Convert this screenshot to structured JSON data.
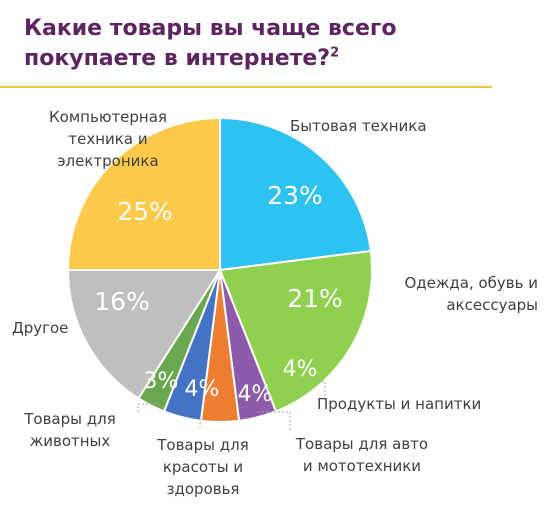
{
  "header": {
    "title": "Какие товары вы чаще всего покупаете в интернете?",
    "footnote_mark": "2"
  },
  "chart_data": {
    "type": "pie",
    "title": "Какие товары вы чаще всего покупаете в интернете?",
    "start_angle_deg": 0,
    "direction": "clockwise",
    "slices": [
      {
        "label": "Бытовая техника",
        "value": 23,
        "value_label": "23%",
        "color": "#2ec2f0"
      },
      {
        "label": "Одежда, обувь и аксессуары",
        "value": 21,
        "value_label": "21%",
        "color": "#8fd14f"
      },
      {
        "label": "Продукты и напитки",
        "value": 4,
        "value_label": "4%",
        "color": "#8e5bab"
      },
      {
        "label": "Товары для авто и мототехники",
        "value": 4,
        "value_label": "4%",
        "color": "#ed7d31"
      },
      {
        "label": "Товары для красоты и здоровья",
        "value": 4,
        "value_label": "4%",
        "color": "#4472c4"
      },
      {
        "label": "Товары для животных",
        "value": 3,
        "value_label": "3%",
        "color": "#6aa84f"
      },
      {
        "label": "Другое",
        "value": 16,
        "value_label": "16%",
        "color": "#bfbfbf"
      },
      {
        "label": "Компьютерная техника и электроника",
        "value": 25,
        "value_label": "25%",
        "color": "#fdc94a"
      }
    ]
  }
}
